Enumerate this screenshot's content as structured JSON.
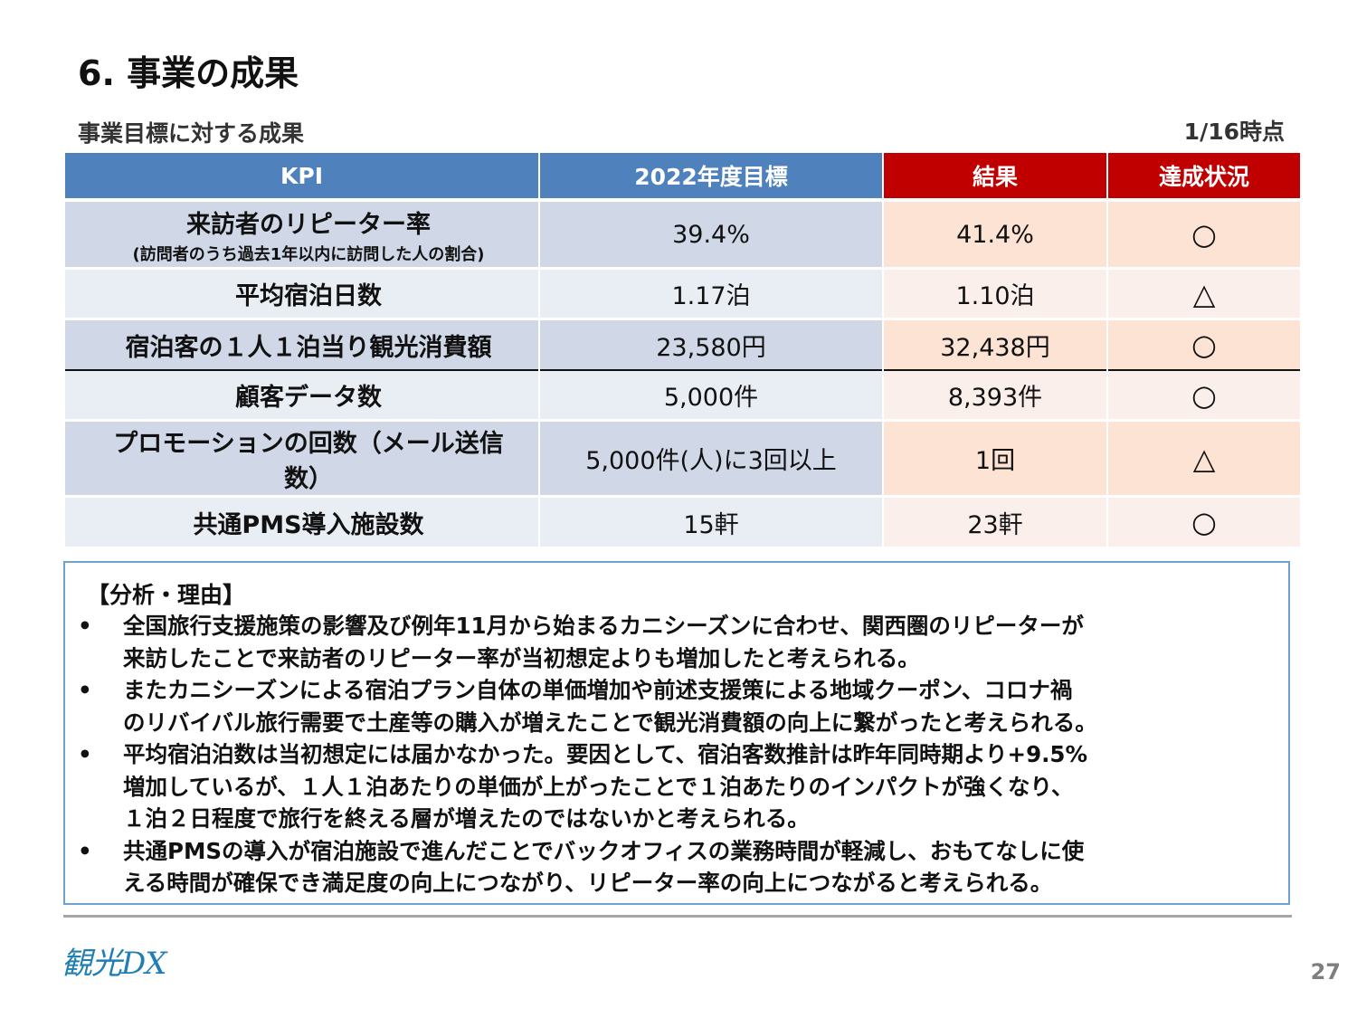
{
  "title": "6. 事業の成果",
  "subtitle": "事業目標に対する成果",
  "as_of": "1/16時点",
  "table": {
    "headers": [
      "KPI",
      "2022年度目標",
      "結果",
      "達成状況"
    ],
    "rows": [
      {
        "kpi": "来訪者のリピーター率",
        "note": "(訪問者のうち過去1年以内に訪問した人の割合)",
        "target": "39.4%",
        "result": "41.4%",
        "status": "○"
      },
      {
        "kpi": "平均宿泊日数",
        "target": "1.17泊",
        "result": "1.10泊",
        "status": "△"
      },
      {
        "kpi": "宿泊客の１人１泊当り観光消費額",
        "target": "23,580円",
        "result": "32,438円",
        "status": "○"
      },
      {
        "kpi": "顧客データ数",
        "target": "5,000件",
        "result": "8,393件",
        "status": "○"
      },
      {
        "kpi": "プロモーションの回数（メール送信数）",
        "kpi_line1": "プロモーションの回数（メール送信",
        "kpi_line2": "数）",
        "target": "5,000件(人)に3回以上",
        "result": "1回",
        "status": "△"
      },
      {
        "kpi": "共通PMS導入施設数",
        "target": "15軒",
        "result": "23軒",
        "status": "○"
      }
    ]
  },
  "analysis": {
    "heading": "【分析・理由】",
    "bullets": [
      [
        "全国旅行支援施策の影響及び例年11月から始まるカニシーズンに合わせ、関西圏のリピーターが",
        "来訪したことで来訪者のリピーター率が当初想定よりも増加したと考えられる。"
      ],
      [
        "またカニシーズンによる宿泊プラン自体の単価増加や前述支援策による地域クーポン、コロナ禍",
        "のリバイバル旅行需要で土産等の購入が増えたことで観光消費額の向上に繋がったと考えられる。"
      ],
      [
        "平均宿泊泊数は当初想定には届かなかった。要因として、宿泊客数推計は昨年同時期より+9.5%",
        "増加しているが、１人１泊あたりの単価が上がったことで１泊あたりのインパクトが強くなり、",
        "１泊２日程度で旅行を終える層が増えたのではないかと考えられる。"
      ],
      [
        "共通PMSの導入が宿泊施設で進んだことでバックオフィスの業務時間が軽減し、おもてなしに使",
        "える時間が確保でき満足度の向上につながり、リピーター率の向上につながると考えられる。"
      ]
    ]
  },
  "footer": {
    "logo": "観光DX",
    "page_number": "27"
  },
  "colors": {
    "header_blue": "#4f81bd",
    "header_red": "#c00000",
    "box_border": "#6fa3cf"
  }
}
